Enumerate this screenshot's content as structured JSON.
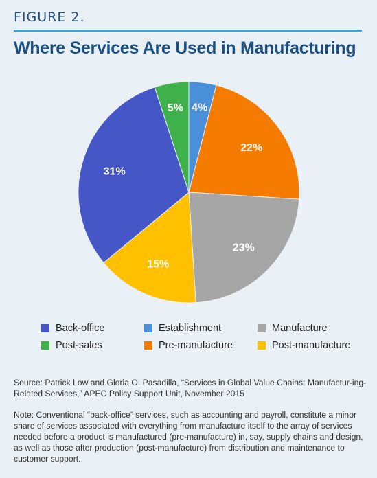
{
  "figure_label": "FIGURE 2.",
  "title": "Where Services Are Used in Manufacturing",
  "chart_data": {
    "type": "pie",
    "title": "Where Services Are Used in Manufacturing",
    "slices": [
      {
        "name": "Establishment",
        "value": 4,
        "label": "4%",
        "color": "#4a90d9"
      },
      {
        "name": "Pre-manufacture",
        "value": 22,
        "label": "22%",
        "color": "#f47a00"
      },
      {
        "name": "Manufacture",
        "value": 23,
        "label": "23%",
        "color": "#a6a6a6"
      },
      {
        "name": "Post-manufacture",
        "value": 15,
        "label": "15%",
        "color": "#ffc000"
      },
      {
        "name": "Back-office",
        "value": 31,
        "label": "31%",
        "color": "#4557c6"
      },
      {
        "name": "Post-sales",
        "value": 5,
        "label": "5%",
        "color": "#3fb14a"
      }
    ],
    "legend_placement": "bottom"
  },
  "legend": [
    {
      "label": "Back-office",
      "color": "#4557c6"
    },
    {
      "label": "Establishment",
      "color": "#4a90d9"
    },
    {
      "label": "Manufacture",
      "color": "#a6a6a6"
    },
    {
      "label": "Post-sales",
      "color": "#3fb14a"
    },
    {
      "label": "Pre-manufacture",
      "color": "#f47a00"
    },
    {
      "label": "Post-manufacture",
      "color": "#ffc000"
    }
  ],
  "source_text": "Source: Patrick Low and Gloria O. Pasadilla, “Services in Global Value Chains: Manufactur-ing-Related Services,” APEC Policy Support Unit, November 2015",
  "note_text": "Note: Conventional “back-office” services, such as accounting and payroll, constitute a minor share of services associated with everything from manufacture itself to the array of services needed before a product is manufactured (pre-manufacture) in, say, supply chains and design, as well as those after production (post-manufacture) from distribution and maintenance to customer support."
}
